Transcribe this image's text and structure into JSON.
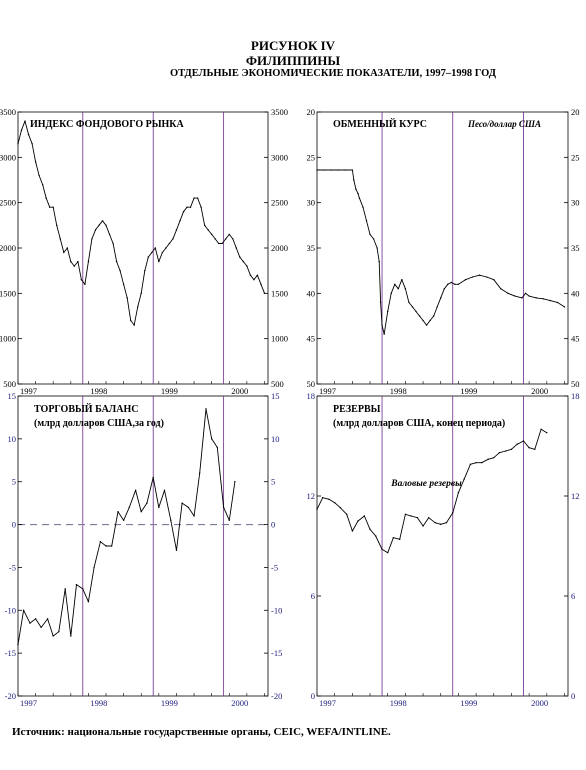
{
  "figure": {
    "title": "РИСУНОК IV",
    "country": "ФИЛИППИНЫ",
    "subtitle": "ОТДЕЛЬНЫЕ ЭКОНОМИЧЕСКИЕ ПОКАЗАТЕЛИ, 1997–1998 ГОД",
    "source": "Источник: национальные государственные органы, CEIC, WEFA/INTLINE."
  },
  "colors": {
    "line": "#000000",
    "frame": "#000000",
    "year_divider": "#6a2a8a",
    "zero_line": "#7a7a9a",
    "axis_text_blue": "#1a1a7a"
  },
  "chart_data": [
    {
      "id": "stock",
      "type": "line",
      "title": "ИНДЕКС ФОНДОВОГО РЫНКА",
      "unit_label": "",
      "xlim": [
        1997.0,
        2000.55
      ],
      "ylim": [
        500,
        3500
      ],
      "y_ticks": [
        500,
        1000,
        1500,
        2000,
        2500,
        3000,
        3500
      ],
      "x_tick_labels": [
        "1997",
        "1998",
        "1999",
        "2000"
      ],
      "year_dividers": [
        1997.92,
        1998.92,
        1999.92
      ],
      "grid": false,
      "series": [
        {
          "x": [
            1997.0,
            1997.05,
            1997.1,
            1997.15,
            1997.2,
            1997.25,
            1997.3,
            1997.35,
            1997.4,
            1997.45,
            1997.5,
            1997.55,
            1997.6,
            1997.65,
            1997.7,
            1997.75,
            1997.8,
            1997.85,
            1997.9,
            1997.95,
            1998.0,
            1998.05,
            1998.1,
            1998.15,
            1998.2,
            1998.25,
            1998.3,
            1998.35,
            1998.4,
            1998.45,
            1998.5,
            1998.55,
            1998.6,
            1998.65,
            1998.7,
            1998.75,
            1998.8,
            1998.85,
            1998.9,
            1998.95,
            1999.0,
            1999.05,
            1999.1,
            1999.15,
            1999.2,
            1999.25,
            1999.3,
            1999.35,
            1999.4,
            1999.45,
            1999.5,
            1999.55,
            1999.6,
            1999.65,
            1999.7,
            1999.75,
            1999.8,
            1999.85,
            1999.9,
            1999.95,
            2000.0,
            2000.05,
            2000.1,
            2000.15,
            2000.2,
            2000.25,
            2000.3,
            2000.35,
            2000.4,
            2000.45,
            2000.5
          ],
          "y": [
            3150,
            3300,
            3400,
            3250,
            3150,
            2950,
            2800,
            2700,
            2550,
            2450,
            2450,
            2250,
            2100,
            1950,
            2000,
            1850,
            1800,
            1850,
            1650,
            1600,
            1850,
            2100,
            2200,
            2250,
            2300,
            2250,
            2150,
            2050,
            1850,
            1750,
            1600,
            1450,
            1200,
            1150,
            1350,
            1500,
            1750,
            1900,
            1950,
            2000,
            1850,
            1950,
            2000,
            2050,
            2100,
            2200,
            2300,
            2400,
            2450,
            2450,
            2550,
            2550,
            2450,
            2250,
            2200,
            2150,
            2100,
            2050,
            2050,
            2100,
            2150,
            2100,
            2000,
            1900,
            1850,
            1800,
            1700,
            1650,
            1700,
            1600,
            1500
          ]
        }
      ]
    },
    {
      "id": "fx",
      "type": "line",
      "title": "ОБМЕННЫЙ КУРС",
      "unit_label": "Песо/доллар США",
      "xlim": [
        1997.0,
        2000.55
      ],
      "ylim": [
        20,
        50
      ],
      "y_inverted": true,
      "y_ticks": [
        20,
        25,
        30,
        35,
        40,
        45,
        50
      ],
      "x_tick_labels": [
        "1997",
        "1998",
        "1999",
        "2000"
      ],
      "year_dividers": [
        1997.92,
        1998.92,
        1999.92
      ],
      "grid": false,
      "series": [
        {
          "x": [
            1997.0,
            1997.1,
            1997.2,
            1997.3,
            1997.4,
            1997.5,
            1997.52,
            1997.55,
            1997.58,
            1997.6,
            1997.65,
            1997.7,
            1997.75,
            1997.8,
            1997.85,
            1997.88,
            1997.9,
            1997.92,
            1997.95,
            1998.0,
            1998.05,
            1998.1,
            1998.15,
            1998.2,
            1998.25,
            1998.3,
            1998.35,
            1998.4,
            1998.45,
            1998.5,
            1998.55,
            1998.6,
            1998.65,
            1998.7,
            1998.75,
            1998.8,
            1998.85,
            1998.9,
            1998.95,
            1999.0,
            1999.1,
            1999.2,
            1999.3,
            1999.4,
            1999.5,
            1999.6,
            1999.7,
            1999.8,
            1999.9,
            1999.95,
            2000.0,
            2000.1,
            2000.2,
            2000.3,
            2000.4,
            2000.5
          ],
          "y": [
            26.4,
            26.4,
            26.4,
            26.4,
            26.4,
            26.4,
            27.5,
            28.5,
            29.0,
            29.5,
            30.5,
            32.0,
            33.5,
            34.0,
            35.0,
            36.5,
            41.0,
            43.5,
            44.5,
            42.0,
            40.0,
            39.0,
            39.5,
            38.5,
            39.5,
            41.0,
            41.5,
            42.0,
            42.5,
            43.0,
            43.5,
            43.0,
            42.5,
            41.5,
            40.5,
            39.5,
            39.0,
            38.8,
            39.0,
            39.0,
            38.5,
            38.2,
            38.0,
            38.2,
            38.5,
            39.5,
            40.0,
            40.3,
            40.5,
            40.0,
            40.3,
            40.5,
            40.6,
            40.8,
            41.0,
            41.5
          ]
        }
      ]
    },
    {
      "id": "trade",
      "type": "line",
      "title": "ТОРГОВЫЙ БАЛАНС",
      "unit_label": "(млрд долларов США,за год)",
      "xlim": [
        1997.0,
        2000.55
      ],
      "ylim": [
        -20,
        15
      ],
      "y_ticks": [
        -20,
        -15,
        -10,
        -5,
        0,
        5,
        10,
        15
      ],
      "x_tick_labels": [
        "1997",
        "1998",
        "1999",
        "2000"
      ],
      "year_dividers": [
        1997.92,
        1998.92,
        1999.92
      ],
      "zero_line": true,
      "grid": false,
      "series": [
        {
          "x": [
            1997.0,
            1997.08,
            1997.17,
            1997.25,
            1997.33,
            1997.42,
            1997.5,
            1997.58,
            1997.67,
            1997.75,
            1997.83,
            1997.92,
            1998.0,
            1998.08,
            1998.17,
            1998.25,
            1998.33,
            1998.42,
            1998.5,
            1998.58,
            1998.67,
            1998.75,
            1998.83,
            1998.92,
            1999.0,
            1999.08,
            1999.17,
            1999.25,
            1999.33,
            1999.42,
            1999.5,
            1999.58,
            1999.67,
            1999.75,
            1999.83,
            1999.92,
            2000.0,
            2000.08
          ],
          "y": [
            -14,
            -10,
            -11.5,
            -11,
            -12,
            -11,
            -13,
            -12.5,
            -7.5,
            -13,
            -7,
            -7.5,
            -9,
            -5,
            -2,
            -2.5,
            -2.5,
            1.5,
            0.5,
            2,
            4,
            1.5,
            2.5,
            5.5,
            2,
            4,
            0.5,
            -3,
            2.5,
            2,
            1,
            6,
            13.5,
            10,
            9,
            2,
            0.5,
            5
          ]
        }
      ]
    },
    {
      "id": "reserves",
      "type": "line",
      "title": "РЕЗЕРВЫ",
      "unit_label": "(млрд долларов США, конец периода)",
      "series_label": "Валовые резервы",
      "xlim": [
        1997.0,
        2000.55
      ],
      "ylim": [
        0,
        18
      ],
      "y_ticks": [
        0,
        6,
        12,
        18
      ],
      "x_tick_labels": [
        "1997",
        "1998",
        "1999",
        "2000"
      ],
      "year_dividers": [
        1997.92,
        1998.92,
        1999.92
      ],
      "grid": false,
      "series": [
        {
          "x": [
            1997.0,
            1997.08,
            1997.17,
            1997.25,
            1997.33,
            1997.42,
            1997.5,
            1997.58,
            1997.67,
            1997.75,
            1997.83,
            1997.92,
            1998.0,
            1998.08,
            1998.17,
            1998.25,
            1998.33,
            1998.42,
            1998.5,
            1998.58,
            1998.67,
            1998.75,
            1998.83,
            1998.92,
            1999.0,
            1999.08,
            1999.17,
            1999.25,
            1999.33,
            1999.42,
            1999.5,
            1999.58,
            1999.67,
            1999.75,
            1999.83,
            1999.92,
            2000.0,
            2000.08,
            2000.17,
            2000.25
          ],
          "y": [
            11.2,
            11.9,
            11.8,
            11.6,
            11.3,
            10.9,
            9.9,
            10.5,
            10.8,
            10.0,
            9.6,
            8.8,
            8.6,
            9.5,
            9.4,
            10.9,
            10.8,
            10.7,
            10.2,
            10.7,
            10.4,
            10.3,
            10.4,
            11.0,
            12.2,
            13.0,
            13.9,
            14.0,
            14.0,
            14.2,
            14.3,
            14.6,
            14.7,
            14.8,
            15.1,
            15.3,
            14.9,
            14.8,
            16.0,
            15.8
          ]
        }
      ]
    }
  ]
}
